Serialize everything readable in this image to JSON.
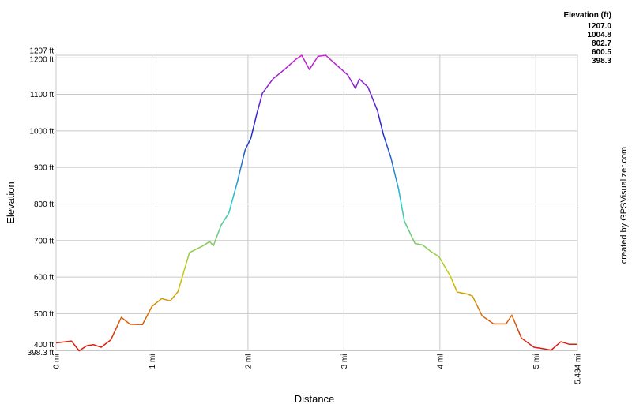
{
  "chart_data": {
    "type": "line",
    "x_label": "Distance",
    "y_label": "Elevation",
    "watermark": "created by GPSVisualizer.com",
    "x": [
      0,
      0.07,
      0.16,
      0.24,
      0.32,
      0.39,
      0.47,
      0.57,
      0.68,
      0.77,
      0.9,
      1.0,
      1.1,
      1.19,
      1.27,
      1.39,
      1.52,
      1.6,
      1.64,
      1.72,
      1.8,
      1.89,
      1.97,
      2.03,
      2.09,
      2.15,
      2.26,
      2.38,
      2.5,
      2.56,
      2.64,
      2.73,
      2.81,
      2.92,
      3.04,
      3.12,
      3.16,
      3.25,
      3.35,
      3.41,
      3.49,
      3.57,
      3.63,
      3.74,
      3.82,
      3.9,
      3.99,
      4.11,
      4.18,
      4.28,
      4.34,
      4.44,
      4.56,
      4.69,
      4.75,
      4.85,
      4.98,
      5.1,
      5.16,
      5.26,
      5.35,
      5.434
    ],
    "values": [
      420,
      422,
      425,
      398.3,
      412,
      415,
      408,
      428,
      490,
      471,
      470,
      520,
      541,
      535,
      560,
      667,
      684,
      697,
      686,
      742,
      775,
      861,
      948,
      980,
      1045,
      1103,
      1142,
      1168,
      1196,
      1207,
      1168,
      1204,
      1207,
      1181,
      1153,
      1116,
      1142,
      1120,
      1055,
      991,
      926,
      840,
      753,
      692,
      688,
      671,
      656,
      602,
      559,
      554,
      548,
      494,
      472,
      472,
      496,
      433,
      408,
      403,
      400,
      423,
      416,
      416
    ],
    "xlim": [
      0,
      5.434
    ],
    "ylim": [
      398.3,
      1207
    ],
    "xticks": [
      {
        "value": 0,
        "label": "0 mi"
      },
      {
        "value": 1,
        "label": "1 mi"
      },
      {
        "value": 2,
        "label": "2 mi"
      },
      {
        "value": 3,
        "label": "3 mi"
      },
      {
        "value": 4,
        "label": "4 mi"
      },
      {
        "value": 5,
        "label": "5 mi"
      },
      {
        "value": 5.434,
        "label": "5.434 mi"
      }
    ],
    "yticks": [
      {
        "value": 1207,
        "label": "1207 ft"
      },
      {
        "value": 1200,
        "label": "1200 ft"
      },
      {
        "value": 1100,
        "label": "1100 ft"
      },
      {
        "value": 1000,
        "label": "1000 ft"
      },
      {
        "value": 900,
        "label": "900 ft"
      },
      {
        "value": 800,
        "label": "800 ft"
      },
      {
        "value": 700,
        "label": "700 ft"
      },
      {
        "value": 600,
        "label": "600 ft"
      },
      {
        "value": 500,
        "label": "500 ft"
      },
      {
        "value": 400,
        "label": "400 ft"
      },
      {
        "value": 398.3,
        "label": "398.3 ft"
      }
    ],
    "grid": true,
    "color_scale": {
      "title": "Elevation (ft)",
      "stops": [
        {
          "value": 1207,
          "label": "1207.0",
          "color": "#cc22cc"
        },
        {
          "value": 1004.8,
          "label": "1004.8",
          "color": "#2222cc"
        },
        {
          "value": 802.7,
          "label": "802.7",
          "color": "#22cccc"
        },
        {
          "value": 600.5,
          "label": "600.5",
          "color": "#cccc00"
        },
        {
          "value": 398.3,
          "label": "398.3",
          "color": "#dd1111"
        }
      ]
    }
  }
}
